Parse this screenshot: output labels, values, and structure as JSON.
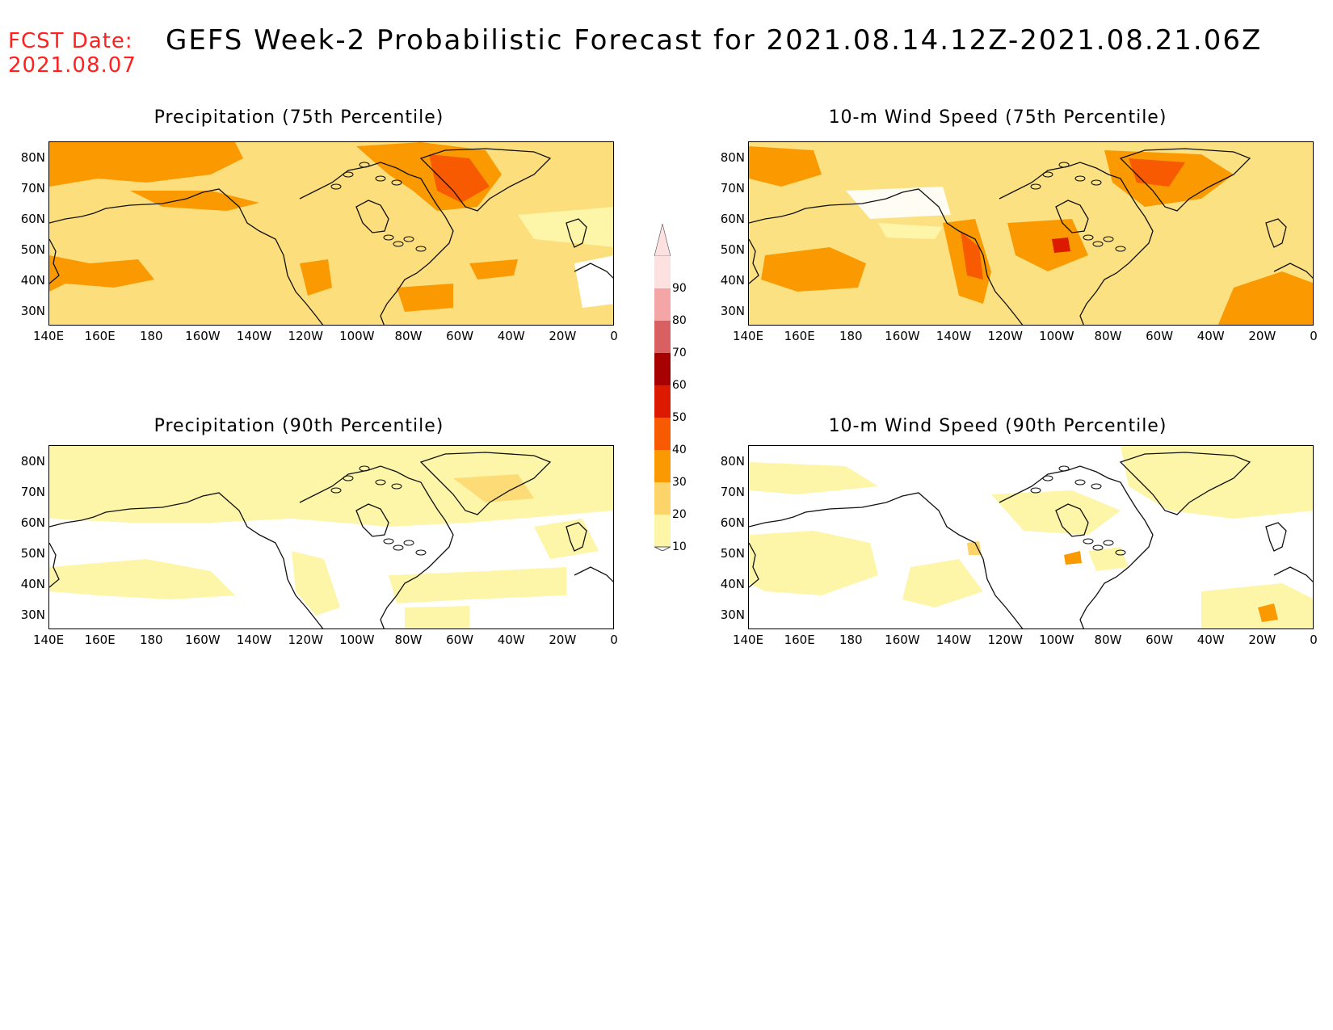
{
  "header": {
    "fcst_label": "FCST Date:",
    "fcst_date": "2021.08.07",
    "title": "GEFS Week-2 Probabilistic Forecast for 2021.08.14.12Z-2021.08.21.06Z"
  },
  "panels": [
    {
      "title": "Precipitation (75th Percentile)",
      "level": "high"
    },
    {
      "title": "10-m Wind Speed (75th Percentile)",
      "level": "high"
    },
    {
      "title": "Precipitation (90th Percentile)",
      "level": "low"
    },
    {
      "title": "10-m Wind Speed (90th Percentile)",
      "level": "low"
    }
  ],
  "axes": {
    "lat_labels": [
      "80N",
      "70N",
      "60N",
      "50N",
      "40N",
      "30N"
    ],
    "lon_labels": [
      "140E",
      "160E",
      "180",
      "160W",
      "140W",
      "120W",
      "100W",
      "80W",
      "60W",
      "40W",
      "20W",
      "0"
    ],
    "lat_range": [
      25,
      85
    ],
    "lon_range": [
      140,
      360
    ]
  },
  "colorbar": {
    "levels": [
      "90",
      "80",
      "70",
      "60",
      "50",
      "40",
      "30",
      "20",
      "10"
    ],
    "colors": [
      "#fde0e0",
      "#f4a6a6",
      "#d96060",
      "#a60000",
      "#dc1a00",
      "#f75a00",
      "#fa9a00",
      "#fcd46a",
      "#fdf5a8"
    ]
  }
}
